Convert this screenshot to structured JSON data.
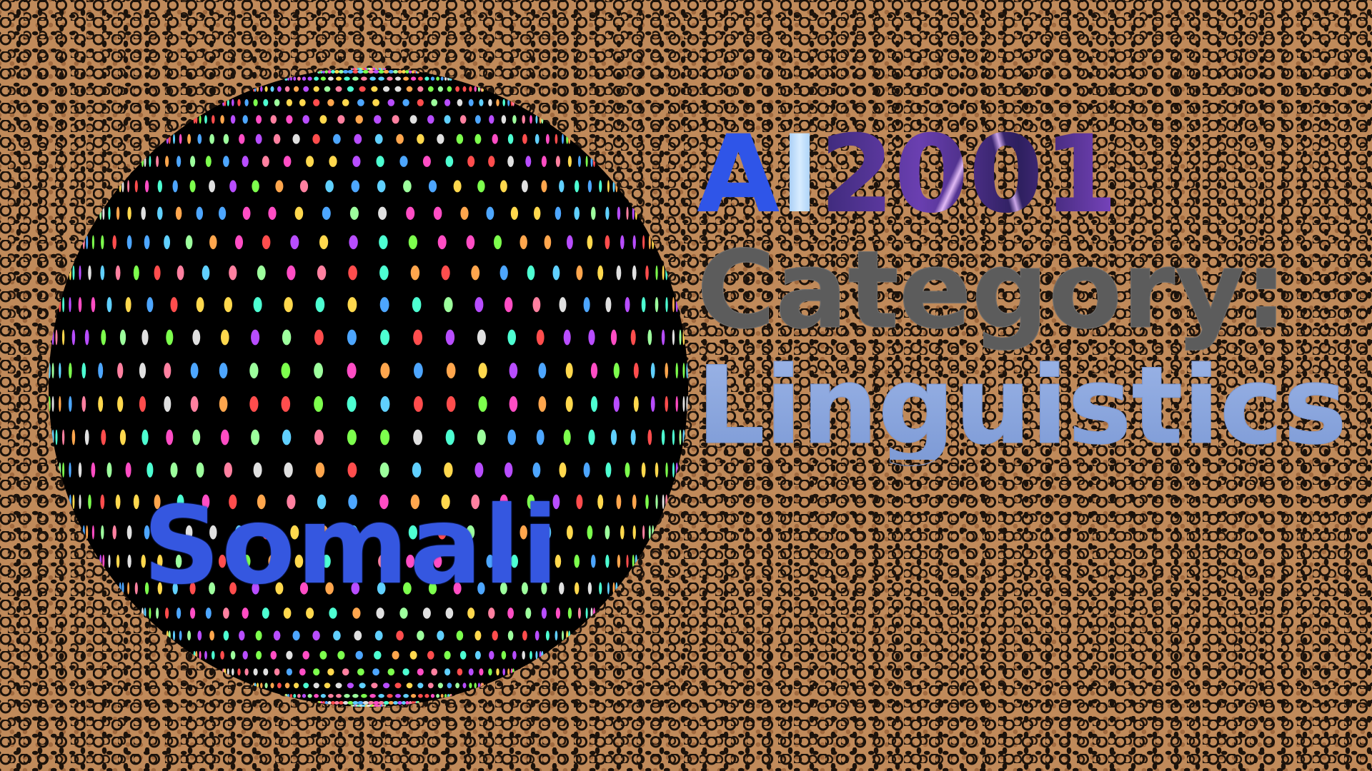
{
  "title": {
    "ai": "AI",
    "ai_prefix": "A",
    "ai_suffix": "I",
    "year": "2001",
    "category": "Category:",
    "topic": "Linguistics"
  },
  "sphere": {
    "label": "Somali"
  },
  "colors": {
    "background": "#c08a5a",
    "spots": "#1b120b",
    "sphere_base": "#000000",
    "label_blue": "#3557e0",
    "ai_blue": "#2f55e8",
    "category_gray": "#8a8a8a",
    "linguistics_blue": "#8fa9dd"
  }
}
